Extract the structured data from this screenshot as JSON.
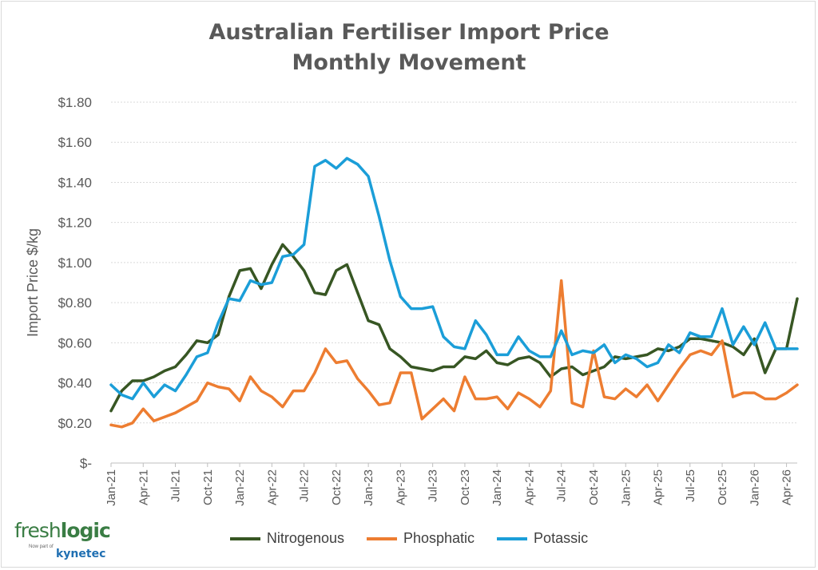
{
  "chart_data": {
    "type": "line",
    "title_lines": [
      "Australian Fertiliser Import Price",
      "Monthly Movement"
    ],
    "ylabel": "Import Price $/kg",
    "xlabel": "",
    "ylim": [
      0,
      1.8
    ],
    "y_ticks": [
      0,
      0.2,
      0.4,
      0.6,
      0.8,
      1.0,
      1.2,
      1.4,
      1.6,
      1.8
    ],
    "y_tick_labels": [
      "$-",
      "$0.20",
      "$0.40",
      "$0.60",
      "$0.80",
      "$1.00",
      "$1.20",
      "$1.40",
      "$1.60",
      "$1.80"
    ],
    "x_start": "Jan-21",
    "x_tick_labels": [
      "Jan-21",
      "Apr-21",
      "Jul-21",
      "Oct-21",
      "Jan-22",
      "Apr-22",
      "Jul-22",
      "Oct-22",
      "Jan-23",
      "Apr-23",
      "Jul-23",
      "Oct-23",
      "Jan-24",
      "Apr-24",
      "Jul-24",
      "Oct-24",
      "Jan-25",
      "Apr-25",
      "Jul-25",
      "Oct-25",
      "Jan-26",
      "Apr-26"
    ],
    "grid": "horizontal",
    "legend_position": "bottom",
    "series": [
      {
        "name": "Nitrogenous",
        "color": "#375623",
        "values": [
          0.26,
          0.36,
          0.41,
          0.41,
          0.43,
          0.46,
          0.48,
          0.54,
          0.61,
          0.6,
          0.64,
          0.83,
          0.96,
          0.97,
          0.87,
          0.99,
          1.09,
          1.03,
          0.96,
          0.85,
          0.84,
          0.96,
          0.99,
          0.85,
          0.71,
          0.69,
          0.57,
          0.53,
          0.48,
          0.47,
          0.46,
          0.48,
          0.48,
          0.53,
          0.52,
          0.56,
          0.5,
          0.49,
          0.52,
          0.53,
          0.5,
          0.43,
          0.47,
          0.48,
          0.44,
          0.46,
          0.48,
          0.53,
          0.52,
          0.53,
          0.54,
          0.57,
          0.56,
          0.58,
          0.62,
          0.62,
          0.61,
          0.6,
          0.58,
          0.54,
          0.62,
          0.45,
          0.57,
          0.57,
          0.82
        ]
      },
      {
        "name": "Phosphatic",
        "color": "#ED7D31",
        "values": [
          0.19,
          0.18,
          0.2,
          0.27,
          0.21,
          0.23,
          0.25,
          0.28,
          0.31,
          0.4,
          0.38,
          0.37,
          0.31,
          0.43,
          0.36,
          0.33,
          0.28,
          0.36,
          0.36,
          0.45,
          0.57,
          0.5,
          0.51,
          0.42,
          0.36,
          0.29,
          0.3,
          0.45,
          0.45,
          0.22,
          0.27,
          0.32,
          0.26,
          0.43,
          0.32,
          0.32,
          0.33,
          0.27,
          0.35,
          0.32,
          0.28,
          0.36,
          0.91,
          0.3,
          0.28,
          0.56,
          0.33,
          0.32,
          0.37,
          0.33,
          0.39,
          0.31,
          0.39,
          0.47,
          0.54,
          0.56,
          0.54,
          0.61,
          0.33,
          0.35,
          0.35,
          0.32,
          0.32,
          0.35,
          0.39
        ]
      },
      {
        "name": "Potassic",
        "color": "#1B9ED8",
        "values": [
          0.39,
          0.34,
          0.32,
          0.4,
          0.33,
          0.39,
          0.36,
          0.44,
          0.53,
          0.55,
          0.7,
          0.82,
          0.81,
          0.91,
          0.89,
          0.9,
          1.03,
          1.04,
          1.09,
          1.48,
          1.51,
          1.47,
          1.52,
          1.49,
          1.43,
          1.23,
          1.01,
          0.83,
          0.77,
          0.77,
          0.78,
          0.63,
          0.58,
          0.57,
          0.71,
          0.64,
          0.54,
          0.54,
          0.63,
          0.56,
          0.53,
          0.53,
          0.66,
          0.54,
          0.56,
          0.55,
          0.59,
          0.5,
          0.54,
          0.52,
          0.48,
          0.5,
          0.59,
          0.55,
          0.65,
          0.63,
          0.63,
          0.77,
          0.59,
          0.68,
          0.59,
          0.7,
          0.57,
          0.57,
          0.57
        ]
      }
    ]
  },
  "logo": {
    "fresh": "fresh",
    "logic": "logic",
    "sub": "Now part of",
    "kynetec": "kynetec"
  }
}
